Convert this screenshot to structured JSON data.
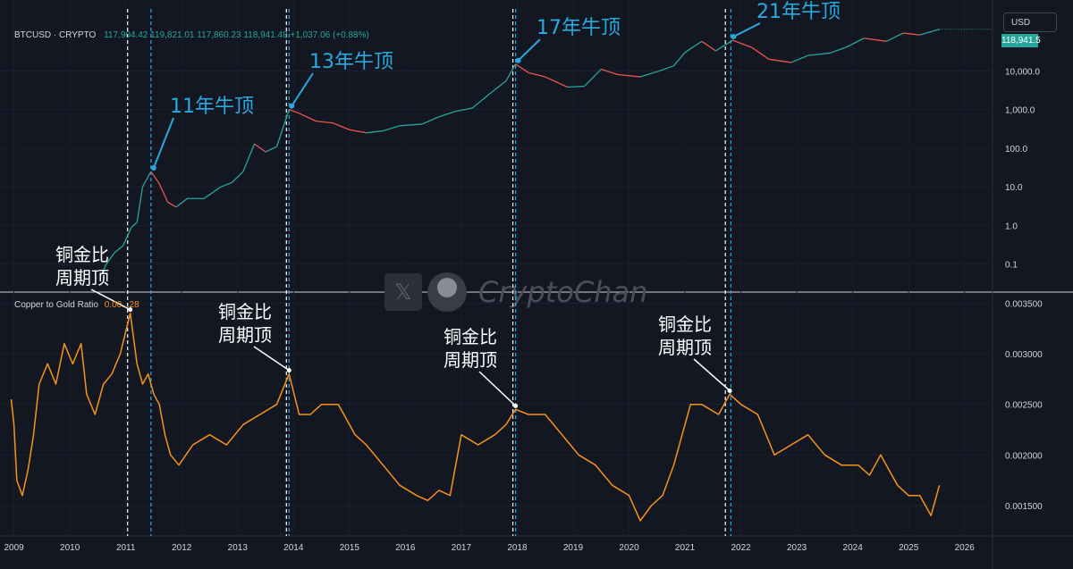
{
  "header": {
    "symbol": "BTCUSD · CRYPTO",
    "ohlc": "117,904.42  119,821.01  117,860.23  118,941.48  +1,037.06 (+0.88%)",
    "currency": "USD",
    "last_price": "118,941.5"
  },
  "lower_pane": {
    "indicator_name": "Copper to Gold Ratio",
    "indicator_value": "0.00...28"
  },
  "watermark": {
    "text": "CryptoChan",
    "x_icon": "x-logo-icon",
    "avatar": "panda-avatar"
  },
  "colors": {
    "background": "#131722",
    "btc_up": "#26a69a",
    "btc_down": "#ef5350",
    "ratio_line": "#f7931a",
    "annotation_blue": "#2aa9e0",
    "annotation_white": "#ffffff"
  },
  "chart_data": [
    {
      "type": "line",
      "title": "BTCUSD · CRYPTO",
      "y_scale": "log",
      "ylim": [
        0.02,
        400000
      ],
      "y_ticks": [
        "0.1",
        "1.0",
        "10.0",
        "100.0",
        "1,000.0",
        "10,000.0"
      ],
      "series": [
        {
          "name": "BTCUSD",
          "x": [
            2010.55,
            2010.65,
            2010.8,
            2010.95,
            2011.1,
            2011.2,
            2011.3,
            2011.45,
            2011.6,
            2011.75,
            2011.9,
            2012.1,
            2012.4,
            2012.7,
            2012.9,
            2013.1,
            2013.3,
            2013.5,
            2013.7,
            2013.92,
            2014.1,
            2014.4,
            2014.7,
            2015.0,
            2015.3,
            2015.6,
            2015.9,
            2016.3,
            2016.6,
            2016.9,
            2017.2,
            2017.5,
            2017.8,
            2017.97,
            2018.2,
            2018.5,
            2018.9,
            2019.2,
            2019.5,
            2019.8,
            2020.2,
            2020.5,
            2020.8,
            2021.0,
            2021.3,
            2021.55,
            2021.85,
            2022.2,
            2022.5,
            2022.9,
            2023.2,
            2023.6,
            2023.9,
            2024.2,
            2024.6,
            2024.9,
            2025.2,
            2025.55
          ],
          "values": [
            0.05,
            0.1,
            0.2,
            0.3,
            0.9,
            1.2,
            10,
            25,
            12,
            4,
            3,
            5,
            5,
            10,
            13,
            25,
            130,
            80,
            110,
            1000,
            800,
            500,
            450,
            300,
            250,
            280,
            380,
            420,
            650,
            900,
            1100,
            2500,
            5500,
            15000,
            9000,
            7000,
            3800,
            4000,
            11000,
            8000,
            7000,
            9500,
            13500,
            30000,
            58000,
            33000,
            62000,
            40000,
            20000,
            16500,
            25000,
            29000,
            42000,
            70000,
            58000,
            95000,
            85000,
            118941.5
          ]
        }
      ]
    },
    {
      "type": "line",
      "title": "Copper to Gold Ratio",
      "ylim": [
        0.0012,
        0.0036
      ],
      "y_ticks": [
        "0.001500",
        "0.002000",
        "0.002500",
        "0.003000",
        "0.003500"
      ],
      "x_ticks": [
        "2009",
        "2010",
        "2011",
        "2012",
        "2013",
        "2014",
        "2015",
        "2016",
        "2017",
        "2018",
        "2019",
        "2020",
        "2021",
        "2022",
        "2023",
        "2024",
        "2025",
        "2026"
      ],
      "series": [
        {
          "name": "Copper to Gold Ratio",
          "x": [
            2008.95,
            2009.0,
            2009.05,
            2009.15,
            2009.25,
            2009.35,
            2009.45,
            2009.6,
            2009.75,
            2009.9,
            2010.05,
            2010.2,
            2010.3,
            2010.45,
            2010.6,
            2010.75,
            2010.9,
            2011.08,
            2011.2,
            2011.3,
            2011.4,
            2011.5,
            2011.6,
            2011.7,
            2011.8,
            2011.95,
            2012.2,
            2012.5,
            2012.8,
            2013.1,
            2013.4,
            2013.7,
            2013.92,
            2014.1,
            2014.3,
            2014.5,
            2014.8,
            2015.1,
            2015.3,
            2015.6,
            2015.9,
            2016.2,
            2016.4,
            2016.6,
            2016.8,
            2017.0,
            2017.3,
            2017.6,
            2017.8,
            2017.97,
            2018.2,
            2018.5,
            2018.8,
            2019.1,
            2019.4,
            2019.7,
            2020.0,
            2020.2,
            2020.4,
            2020.6,
            2020.8,
            2021.1,
            2021.3,
            2021.6,
            2021.8,
            2022.0,
            2022.3,
            2022.6,
            2022.9,
            2023.2,
            2023.5,
            2023.8,
            2024.1,
            2024.3,
            2024.5,
            2024.8,
            2025.0,
            2025.2,
            2025.4,
            2025.55
          ],
          "values": [
            0.00255,
            0.0023,
            0.00175,
            0.0016,
            0.00185,
            0.0022,
            0.0027,
            0.0029,
            0.0027,
            0.0031,
            0.0029,
            0.0031,
            0.0026,
            0.0024,
            0.0027,
            0.0028,
            0.003,
            0.0034,
            0.0029,
            0.0027,
            0.0028,
            0.0026,
            0.0025,
            0.0022,
            0.002,
            0.0019,
            0.0021,
            0.0022,
            0.0021,
            0.0023,
            0.0024,
            0.0025,
            0.0028,
            0.0024,
            0.0024,
            0.0025,
            0.0025,
            0.0022,
            0.0021,
            0.0019,
            0.0017,
            0.0016,
            0.00155,
            0.00165,
            0.0016,
            0.0022,
            0.0021,
            0.0022,
            0.0023,
            0.00245,
            0.0024,
            0.0024,
            0.0022,
            0.002,
            0.0019,
            0.0017,
            0.0016,
            0.00135,
            0.0015,
            0.0016,
            0.0019,
            0.0025,
            0.0025,
            0.0024,
            0.0026,
            0.0025,
            0.0024,
            0.002,
            0.0021,
            0.0022,
            0.002,
            0.0019,
            0.0019,
            0.0018,
            0.002,
            0.0017,
            0.0016,
            0.0016,
            0.0014,
            0.0017
          ]
        }
      ]
    }
  ],
  "annotations": {
    "bull_tops": [
      {
        "label": "11年牛顶",
        "year": 2011.45
      },
      {
        "label": "13年牛顶",
        "year": 2013.92
      },
      {
        "label": "17年牛顶",
        "year": 2017.97
      },
      {
        "label": "21年牛顶",
        "year": 2021.82
      }
    ],
    "ratio_tops": [
      {
        "line1": "铜金比",
        "line2": "周期顶",
        "year": 2011.08
      },
      {
        "line1": "铜金比",
        "line2": "周期顶",
        "year": 2013.92
      },
      {
        "line1": "铜金比",
        "line2": "周期顶",
        "year": 2017.97
      },
      {
        "line1": "铜金比",
        "line2": "周期顶",
        "year": 2021.77
      }
    ]
  }
}
